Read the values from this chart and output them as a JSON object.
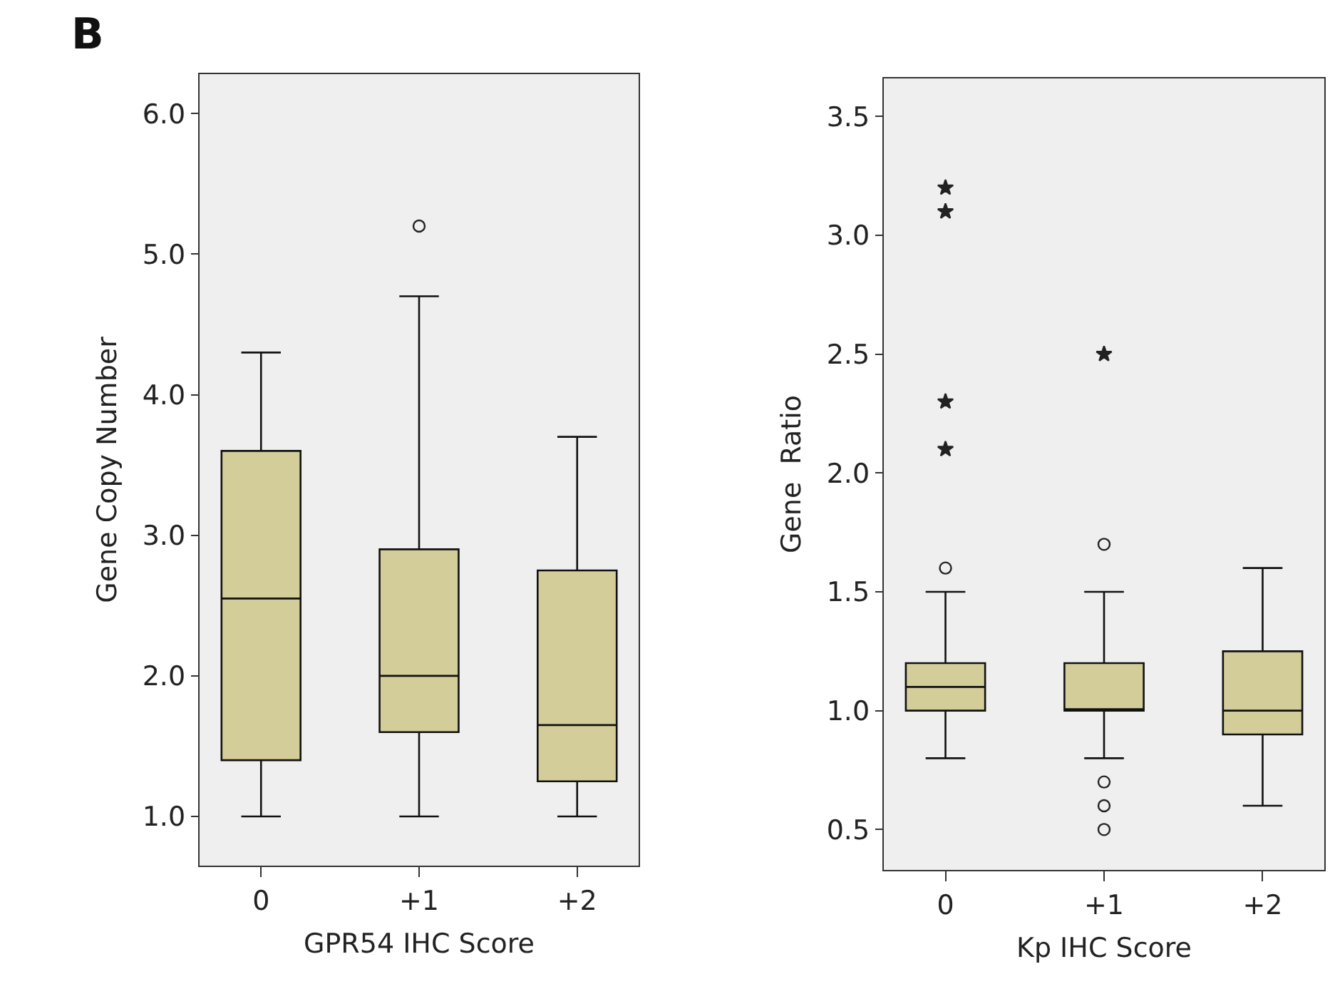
{
  "chart_data": [
    {
      "type": "box",
      "annotations": [
        "B"
      ],
      "xlabel": "GPR54 IHC Score",
      "ylabel": "Gene Copy Number",
      "categories": [
        "0",
        "+1",
        "+2"
      ],
      "color": "#d3cd9a",
      "marker": "circle",
      "boxes": [
        {
          "low": 1.0,
          "q1": 1.4,
          "median": 2.55,
          "q3": 3.6,
          "high": 4.3
        },
        {
          "low": 1.0,
          "q1": 1.6,
          "median": 2.0,
          "q3": 2.9,
          "high": 4.7,
          "outliers": [
            5.2
          ]
        },
        {
          "low": 1.0,
          "q1": 1.25,
          "median": 1.65,
          "q3": 2.75,
          "high": 3.7
        }
      ],
      "ylim": [
        0.65,
        6.28
      ],
      "yticks": [
        {
          "value": 1,
          "label": "1.0"
        },
        {
          "value": 2,
          "label": "2.0"
        },
        {
          "value": 3,
          "label": "3.0"
        },
        {
          "value": 4,
          "label": "4.0"
        },
        {
          "value": 5,
          "label": "5.0"
        },
        {
          "value": 6,
          "label": "6.0"
        }
      ],
      "grid": false
    },
    {
      "type": "box",
      "xlabel": "Kp IHC Score",
      "ylabel": "Gene  Ratio",
      "categories": [
        "0",
        "+1",
        "+2"
      ],
      "color": "#d3cd9a",
      "marker": "circle",
      "boxes": [
        {
          "low": 0.8,
          "q1": 1.0,
          "median": 1.1,
          "q3": 1.2,
          "high": 1.5,
          "outliers": [
            1.6
          ]
        },
        {
          "low": 0.8,
          "q1": 1.0,
          "median": 1.0,
          "q3": 1.2,
          "high": 1.5,
          "outliers": [
            1.7,
            0.7,
            0.6,
            0.5
          ]
        },
        {
          "low": 0.6,
          "q1": 0.9,
          "median": 1.0,
          "q3": 1.25,
          "high": 1.6
        }
      ],
      "series": [
        {
          "type": "scatter",
          "marker": "star",
          "color": "#222222",
          "x": [
            "0",
            "0",
            "0",
            "0",
            "+1"
          ],
          "values": [
            3.2,
            3.1,
            2.3,
            2.1,
            2.5
          ]
        }
      ],
      "ylim": [
        0.33,
        3.66
      ],
      "yticks": [
        {
          "value": 0.5,
          "label": "0.5"
        },
        {
          "value": 1,
          "label": "1.0"
        },
        {
          "value": 1.5,
          "label": "1.5"
        },
        {
          "value": 2,
          "label": "2.0"
        },
        {
          "value": 2.5,
          "label": "2.5"
        },
        {
          "value": 3,
          "label": "3.0"
        },
        {
          "value": 3.5,
          "label": "3.5"
        }
      ],
      "grid": false
    }
  ]
}
